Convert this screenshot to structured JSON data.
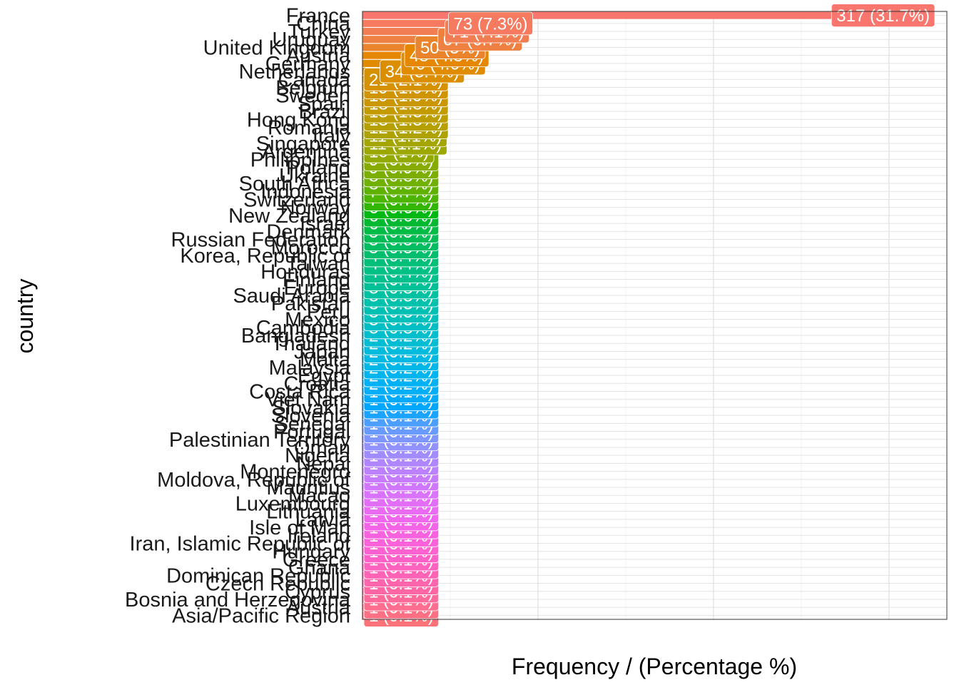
{
  "chart_data": {
    "type": "bar",
    "orientation": "horizontal",
    "xlabel": "Frequency / (Percentage %)",
    "ylabel": "country",
    "xlim": [
      0,
      333
    ],
    "grid": true,
    "legend": "none",
    "categories": [
      "France",
      "China",
      "Turkey",
      "Uruguay",
      "United Kingdom",
      "Austria",
      "Germany",
      "Netherlands",
      "Canada",
      "Belgium",
      "Sweden",
      "Spain",
      "Brazil",
      "Hong Kong",
      "Romania",
      "Italy",
      "Singapore",
      "Argentina",
      "Philippines",
      "Poland",
      "Ukraine",
      "South Africa",
      "Indonesia",
      "Switzerland",
      "Norway",
      "New Zealand",
      "Israel",
      "Denmark",
      "Russian Federation",
      "Morocco",
      "Korea, Republic of",
      "Taiwan",
      "Honduras",
      "Finland",
      "Europe",
      "Saudi Arabia",
      "Pakistan",
      "Peru",
      "Mexico",
      "Cambodia",
      "Bangladesh",
      "Thailand",
      "Japan",
      "Malta",
      "Malaysia",
      "Egypt",
      "Croatia",
      "Costa Rica",
      "Viet Nam",
      "Slovakia",
      "Slovenia",
      "Senegal",
      "Portugal",
      "Palestinian Territory",
      "Oman",
      "Nigeria",
      "Nepal",
      "Montenegro",
      "Moldova, Republic of",
      "Mauritius",
      "Macao",
      "Luxembourg",
      "Lithuania",
      "Latvia",
      "Isle of Man",
      "Ireland",
      "Iran, Islamic Republic of",
      "Hungary",
      "Greece",
      "Ghana",
      "Dominican Republic",
      "Czech Republic",
      "Cyprus",
      "Bosnia and Herzegovina",
      "Austria",
      "Asia/Pacific Region"
    ],
    "values": [
      317,
      73,
      71,
      67,
      50,
      48,
      46,
      34,
      21,
      19,
      19,
      18,
      13,
      13,
      12,
      11,
      11,
      10,
      9,
      9,
      8,
      8,
      7,
      7,
      6,
      6,
      6,
      5,
      5,
      5,
      4,
      4,
      4,
      4,
      3,
      3,
      3,
      3,
      3,
      3,
      2,
      2,
      2,
      2,
      2,
      2,
      2,
      1,
      1,
      1,
      1,
      1,
      1,
      1,
      1,
      1,
      1,
      1,
      1,
      1,
      1,
      1,
      1,
      1,
      1,
      1,
      1,
      1,
      1,
      1,
      1,
      1,
      1,
      1,
      1,
      1
    ],
    "labels": [
      "317 (31.7%)",
      "73 (7.3%)",
      "71 (7.1%)",
      "67 (6.7%)",
      "50 (5%)",
      "48 (4.8%)",
      "46 (4.6%)",
      "34 (3.4%)",
      "21 (2.1%)",
      "19 (1.9%)",
      "19 (1.9%)",
      "18 (1.8%)",
      "13 (1.3%)",
      "13 (1.3%)",
      "12 (1.2%)",
      "11 (1.1%)",
      "11 (1.1%)",
      "10 (1%)",
      "9 (0.9%)",
      "9 (0.9%)",
      "8 (0.8%)",
      "8 (0.8%)",
      "7 (0.7%)",
      "7 (0.7%)",
      "6 (0.6%)",
      "6 (0.6%)",
      "6 (0.6%)",
      "5 (0.5%)",
      "5 (0.5%)",
      "5 (0.5%)",
      "4 (0.4%)",
      "4 (0.4%)",
      "4 (0.4%)",
      "4 (0.4%)",
      "3 (0.3%)",
      "3 (0.3%)",
      "3 (0.3%)",
      "3 (0.3%)",
      "3 (0.3%)",
      "3 (0.3%)",
      "2 (0.2%)",
      "2 (0.2%)",
      "2 (0.2%)",
      "2 (0.2%)",
      "2 (0.2%)",
      "2 (0.2%)",
      "2 (0.2%)",
      "1 (0.1%)",
      "1 (0.1%)",
      "1 (0.1%)",
      "1 (0.1%)",
      "1 (0.1%)",
      "1 (0.1%)",
      "1 (0.1%)",
      "1 (0.1%)",
      "1 (0.1%)",
      "1 (0.1%)",
      "1 (0.1%)",
      "1 (0.1%)",
      "1 (0.1%)",
      "1 (0.1%)",
      "1 (0.1%)",
      "1 (0.1%)",
      "1 (0.1%)",
      "1 (0.1%)",
      "1 (0.1%)",
      "1 (0.1%)",
      "1 (0.1%)",
      "1 (0.1%)",
      "1 (0.1%)",
      "1 (0.1%)",
      "1 (0.1%)",
      "1 (0.1%)",
      "1 (0.1%)",
      "1 (0.1%)",
      "1 (0.1%)"
    ],
    "colors": {
      "palette": "hue",
      "panel_border": "#333333",
      "grid_major": "#e3e3e3",
      "grid_minor": "#f2f2f2",
      "label_text": "#ffffff"
    }
  }
}
